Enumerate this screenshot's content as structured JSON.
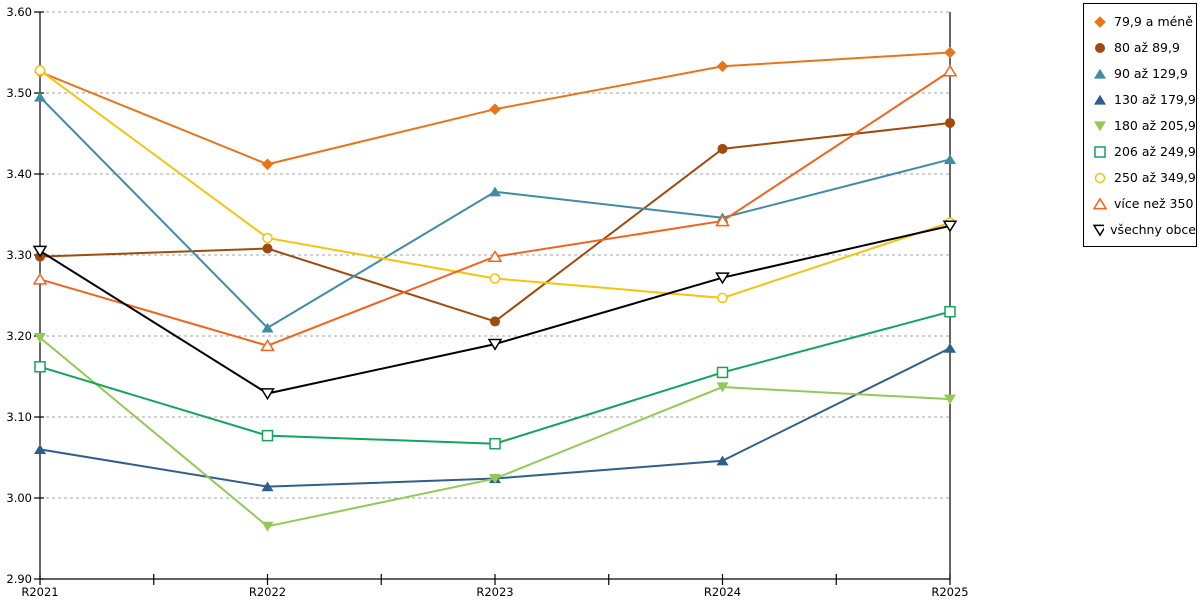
{
  "chart_data": {
    "type": "line",
    "title": "",
    "categories": [
      "R2021",
      "R2022",
      "R2023",
      "R2024",
      "R2025"
    ],
    "series": [
      {
        "name": "79,9 a méně",
        "marker": "diamond",
        "fill": "solid",
        "color": "#E8751A",
        "values": [
          3.526,
          3.412,
          3.48,
          3.533,
          3.55
        ]
      },
      {
        "name": "80 až 89,9",
        "marker": "circle",
        "fill": "solid",
        "color": "#A04A0E",
        "values": [
          3.298,
          3.308,
          3.218,
          3.431,
          3.463
        ]
      },
      {
        "name": "90 až 129,9",
        "marker": "triangle-up",
        "fill": "solid",
        "color": "#3E8CA6",
        "values": [
          3.495,
          3.21,
          3.378,
          3.346,
          3.418
        ]
      },
      {
        "name": "130 až 179,9",
        "marker": "triangle-up",
        "fill": "solid",
        "color": "#2F5F8F",
        "values": [
          3.06,
          3.014,
          3.024,
          3.046,
          3.185
        ]
      },
      {
        "name": "180 až 205,9",
        "marker": "triangle-down",
        "fill": "solid",
        "color": "#93C954",
        "values": [
          3.198,
          2.965,
          3.024,
          3.137,
          3.122
        ]
      },
      {
        "name": "206 až 249,9",
        "marker": "square",
        "fill": "open",
        "color": "#12A55B",
        "values": [
          3.162,
          3.077,
          3.067,
          3.155,
          3.23
        ]
      },
      {
        "name": "250 až 349,9",
        "marker": "circle",
        "fill": "open",
        "color": "#F5C40F",
        "values": [
          3.528,
          3.321,
          3.271,
          3.247,
          3.34
        ]
      },
      {
        "name": "více než 350",
        "marker": "triangle-up",
        "fill": "open",
        "color": "#F2641C",
        "values": [
          3.27,
          3.188,
          3.298,
          3.342,
          3.527
        ]
      },
      {
        "name": "všechny obce",
        "marker": "triangle-down",
        "fill": "open",
        "color": "#000000",
        "values": [
          3.305,
          3.129,
          3.19,
          3.272,
          3.336
        ]
      }
    ],
    "ylim": [
      2.9,
      3.6
    ],
    "ytick_step": 0.1,
    "ytick_labels": [
      "2.90",
      "3.00",
      "3.10",
      "3.20",
      "3.30",
      "3.40",
      "3.50",
      "3.60"
    ],
    "grid": "horizontal-dashed",
    "legend_position": "right"
  },
  "colors": {
    "background": "#FFFFFF",
    "grid": "#A6A6A6",
    "axis": "#000000",
    "legend_border": "#000000",
    "text": "#000000"
  }
}
